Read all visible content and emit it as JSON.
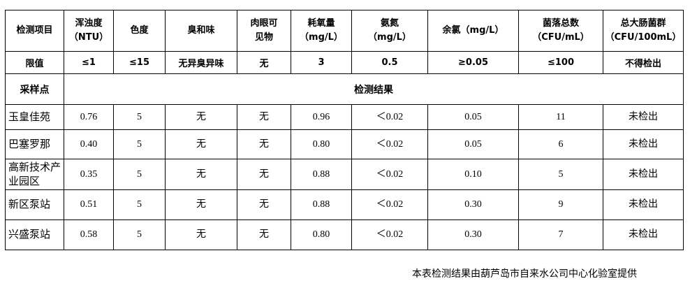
{
  "table": {
    "headers": [
      {
        "line1": "检测项目",
        "line2": ""
      },
      {
        "line1": "浑浊度",
        "line2": "（NTU）"
      },
      {
        "line1": "色度",
        "line2": ""
      },
      {
        "line1": "臭和味",
        "line2": ""
      },
      {
        "line1": "肉眼可",
        "line2": "见物"
      },
      {
        "line1": "耗氧量",
        "line2": "（mg/L）"
      },
      {
        "line1": "氨氮",
        "line2": "（mg/L）"
      },
      {
        "line1": "余氯（mg/L）",
        "line2": ""
      },
      {
        "line1": "菌落总数",
        "line2": "（CFU/mL）"
      },
      {
        "line1": "总大肠菌群",
        "line2": "（CFU/100mL）"
      }
    ],
    "limits": [
      "限值",
      "≤1",
      "≤15",
      "无异臭异味",
      "无",
      "3",
      "0.5",
      "≥0.05",
      "≤100",
      "不得检出"
    ],
    "section_label": "采样点",
    "section_title": "检测结果",
    "rows": [
      [
        "玉皇佳苑",
        "0.76",
        "5",
        "无",
        "无",
        "0.96",
        "＜0.02",
        "0.05",
        "11",
        "未检出"
      ],
      [
        "巴塞罗那",
        "0.40",
        "5",
        "无",
        "无",
        "0.80",
        "＜0.02",
        "0.05",
        "6",
        "未检出"
      ],
      [
        "高新技术产业园区",
        "0.35",
        "5",
        "无",
        "无",
        "0.88",
        "＜0.02",
        "0.10",
        "5",
        "未检出"
      ],
      [
        "新区泵站",
        "0.51",
        "5",
        "无",
        "无",
        "0.88",
        "＜0.02",
        "0.30",
        "9",
        "未检出"
      ],
      [
        "兴盛泵站",
        "0.58",
        "5",
        "无",
        "无",
        "0.80",
        "＜0.02",
        "0.30",
        "7",
        "未检出"
      ]
    ]
  },
  "footnote": "本表检测结果由葫芦岛市自来水公司中心化验室提供"
}
